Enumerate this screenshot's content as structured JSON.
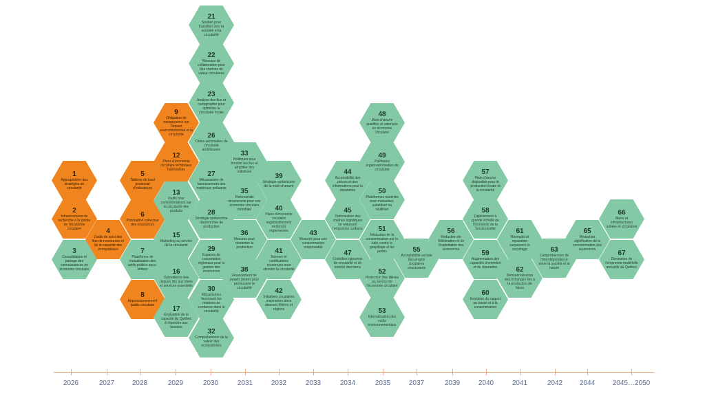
{
  "colors": {
    "green": "#84c9a5",
    "orange": "#f0851f",
    "timeline": "#e8a67e",
    "year_text": "#5a6b8c"
  },
  "actions": [
    {
      "n": "1",
      "t": "Appropriation des stratégies de circularité",
      "c": "orange"
    },
    {
      "n": "2",
      "t": "Infrastructures de recherche à la pointe de l'économie circulaire",
      "c": "orange"
    },
    {
      "n": "3",
      "t": "Consolidation et partage des connaissances en économie circulaire",
      "c": "green"
    },
    {
      "n": "4",
      "t": "Outils de suivi des flux de ressources et de la capacité des écosystèmes",
      "c": "orange"
    },
    {
      "n": "5",
      "t": "Tableau de bord provincial d'indicateurs",
      "c": "orange"
    },
    {
      "n": "6",
      "t": "Priorisation collective des ressources",
      "c": "orange"
    },
    {
      "n": "7",
      "t": "Plateforme de mutualisation des actifs publics sous-utilisés",
      "c": "green"
    },
    {
      "n": "8",
      "t": "Approvisionnement public circulaire",
      "c": "orange"
    },
    {
      "n": "9",
      "t": "Obligation de transparence sur l'impact environnemental et la circularité",
      "c": "orange"
    },
    {
      "n": "12",
      "t": "Plans d'économie circulaire territoriaux harmonisés",
      "c": "orange"
    },
    {
      "n": "13",
      "t": "Outils pour consommateurs sur la circularité des produits",
      "c": "green"
    },
    {
      "n": "15",
      "t": "Marketing au service de la circularité",
      "c": "green"
    },
    {
      "n": "16",
      "t": "Surveillance des risques liés aux biens et services essentiels",
      "c": "green"
    },
    {
      "n": "17",
      "t": "Évaluation de la capacité du Québec à répondre aux besoins",
      "c": "green"
    },
    {
      "n": "21",
      "t": "Soutien pour transition vers la sobriété et la circularité",
      "c": "green"
    },
    {
      "n": "22",
      "t": "Réseaux de collaboration pour des chaînes de valeur circulaires",
      "c": "green"
    },
    {
      "n": "23",
      "t": "Analyse des flux et cartographie pour optimiser la circularité locale",
      "c": "green"
    },
    {
      "n": "26",
      "t": "Cibles sectorielles de circularité ambitieuses",
      "c": "green"
    },
    {
      "n": "27",
      "t": "Mécanismes de bannissement des matériaux polluants",
      "c": "green"
    },
    {
      "n": "28",
      "t": "Stratégie québécoise d'autonomie de production",
      "c": "green"
    },
    {
      "n": "29",
      "t": "Espaces de concertation régionaux pour la gestion des ressources",
      "c": "green"
    },
    {
      "n": "30",
      "t": "Mécanismes favorisant les relations de confiance dans la circularité",
      "c": "green"
    },
    {
      "n": "32",
      "t": "Compréhension de la valeur des écosystèmes",
      "c": "green"
    },
    {
      "n": "33",
      "t": "Politiques pour boucler les flux et amplifier des initiatives",
      "c": "green"
    },
    {
      "n": "35",
      "t": "Partenariats structurants pour une économie circulaire mondiale",
      "c": "green"
    },
    {
      "n": "36",
      "t": "Mesures pour réorienter la production",
      "c": "green"
    },
    {
      "n": "38",
      "t": "Financement de projets pilotes pour promouvoir la circularité",
      "c": "green"
    },
    {
      "n": "39",
      "t": "Stratégie québécoise de la main-d'œuvre",
      "c": "green"
    },
    {
      "n": "40",
      "t": "Plans d'économie circulaire organisationnels renforcés réglementés",
      "c": "green"
    },
    {
      "n": "41",
      "t": "Normes et certifications reconnues pour stimuler la circularité",
      "c": "green"
    },
    {
      "n": "42",
      "t": "Initiatives circulaires inspirantes dans diverses filières et régions",
      "c": "green"
    },
    {
      "n": "43",
      "t": "Mesures pour une consommation responsable",
      "c": "green"
    },
    {
      "n": "44",
      "t": "Accessibilité des pièces et des informations pour la réparation",
      "c": "green"
    },
    {
      "n": "45",
      "t": "Optimisation des chaînes logistiques en réduisant l'empreinte carbone",
      "c": "green"
    },
    {
      "n": "47",
      "t": "Contrôles rigoureux de circularité et de toxicité des biens",
      "c": "green"
    },
    {
      "n": "48",
      "t": "Main-d'œuvre qualifiée et valorisée en économie circulaire",
      "c": "green"
    },
    {
      "n": "49",
      "t": "Politiques organisationnelles de circularité",
      "c": "green"
    },
    {
      "n": "50",
      "t": "Plateformes ouvertes pour mutualiser, substituer ou réutiliser",
      "c": "green"
    },
    {
      "n": "51",
      "t": "Réduction de la consommation par la lutte contre le gaspillage et les pertes",
      "c": "green"
    },
    {
      "n": "52",
      "t": "Protection des filières au service de l'économie circulaire",
      "c": "green"
    },
    {
      "n": "53",
      "t": "Internalisation des coûts environnementaux",
      "c": "green"
    },
    {
      "n": "55",
      "t": "Acceptabilité sociale des projets circulaires structurants",
      "c": "green"
    },
    {
      "n": "56",
      "t": "Réduction de l'élimination et de l'exploitation des ressources",
      "c": "green"
    },
    {
      "n": "57",
      "t": "Main-d'œuvre disponible pour la production locale et la circularité",
      "c": "green"
    },
    {
      "n": "58",
      "t": "Déploiement à grande échelle de l'économie de la fonctionnalité",
      "c": "green"
    },
    {
      "n": "59",
      "t": "Augmentation des capacités d'entretien et de réparation",
      "c": "green"
    },
    {
      "n": "60",
      "t": "Évolution du rapport au travail et à la consommation",
      "c": "green"
    },
    {
      "n": "61",
      "t": "Réemploi et réparation surpassent le recyclage",
      "c": "green"
    },
    {
      "n": "62",
      "t": "Dématérialisation des échanges liés à la production de biens",
      "c": "green"
    },
    {
      "n": "63",
      "t": "Compréhension de l'interdépendance entre la société et la nature",
      "c": "green"
    },
    {
      "n": "65",
      "t": "Réduction significative de la consommation des ressources",
      "c": "green"
    },
    {
      "n": "66",
      "t": "Biens et infrastructures sobres et circulaires",
      "c": "green"
    },
    {
      "n": "67",
      "t": "Diminution de l'empreinte matérielle annuelle du Québec",
      "c": "green"
    }
  ],
  "years": [
    "2026",
    "2027",
    "2028",
    "2029",
    "2030",
    "2031",
    "2032",
    "2033",
    "2034",
    "2035",
    "2037",
    "2039",
    "2040",
    "2041",
    "2042",
    "2044",
    "2045…2050"
  ]
}
